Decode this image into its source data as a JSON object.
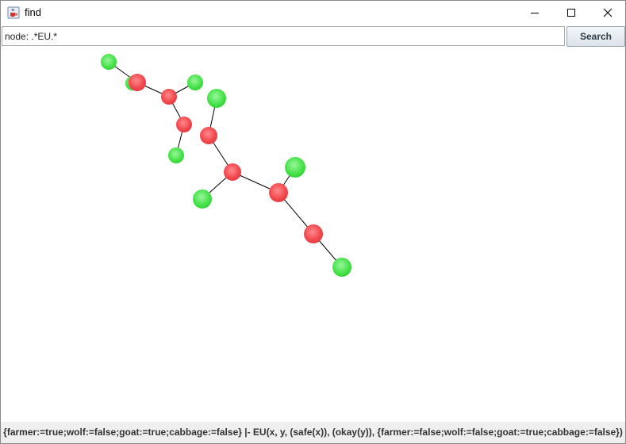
{
  "window": {
    "title": "find",
    "app_icon": "java-coffee-cup-icon",
    "controls": {
      "minimize": "minimize-icon",
      "maximize": "maximize-icon",
      "close": "close-icon"
    }
  },
  "search": {
    "value": "node: .*EU.*",
    "button_label": "Search"
  },
  "graph": {
    "colors": {
      "selected": "#f2494e",
      "node": "#47e34a",
      "edge": "#000000"
    },
    "node_kinds": [
      "node",
      "node",
      "selected",
      "node",
      "selected",
      "node",
      "selected",
      "node",
      "selected",
      "node",
      "selected",
      "node",
      "node",
      "selected",
      "selected",
      "node"
    ],
    "edges": [
      [
        1,
        2
      ],
      [
        2,
        4
      ],
      [
        4,
        3
      ],
      [
        4,
        6
      ],
      [
        6,
        5
      ],
      [
        8,
        7
      ],
      [
        8,
        10
      ],
      [
        10,
        11
      ],
      [
        10,
        13
      ],
      [
        13,
        12
      ],
      [
        13,
        14
      ],
      [
        14,
        15
      ]
    ]
  },
  "status": {
    "text": "{farmer:=true;wolf:=false;goat:=true;cabbage:=false} |- EU(x, y, (safe(x)), (okay(y)), {farmer:=false;wolf:=false;goat:=true;cabbage:=false})"
  }
}
